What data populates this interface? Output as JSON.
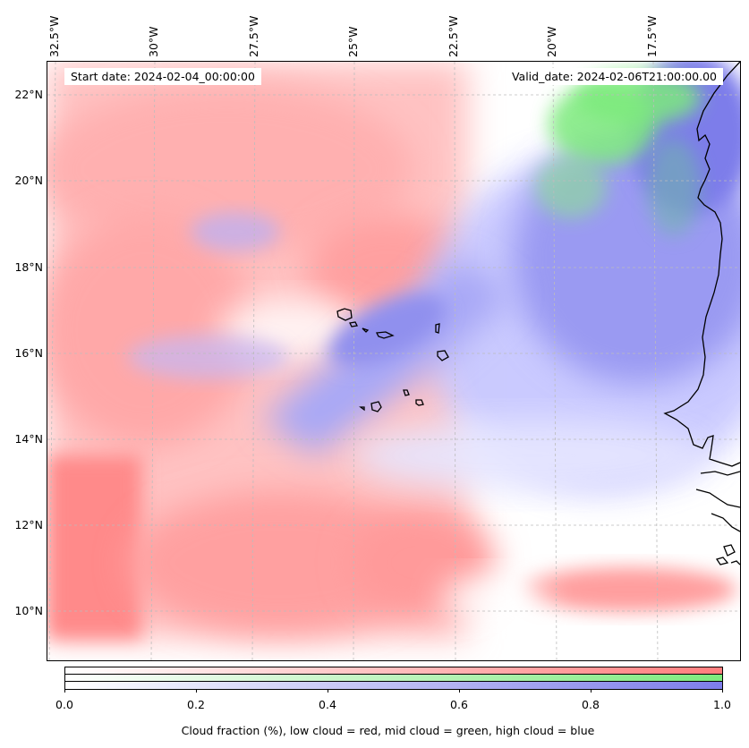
{
  "map": {
    "longitude_labels": [
      "32.5°W",
      "30°W",
      "27.5°W",
      "25°W",
      "22.5°W",
      "20°W",
      "17.5°W"
    ],
    "latitude_labels": [
      "22°N",
      "20°N",
      "18°N",
      "16°N",
      "14°N",
      "12°N",
      "10°N"
    ],
    "start_date": "Start date: 2024-02-04_00:00:00",
    "valid_date": "Valid_date: 2024-02-06T21:00:00.00"
  },
  "colorbar": {
    "ticks": [
      "0.0",
      "0.2",
      "0.4",
      "0.6",
      "0.8",
      "1.0"
    ],
    "caption": "Cloud fraction (%), low cloud = red, mid cloud = green, high cloud = blue",
    "colors": {
      "low": "#ff7d7d",
      "mid": "#7dea7d",
      "high": "#7d7dea"
    }
  }
}
